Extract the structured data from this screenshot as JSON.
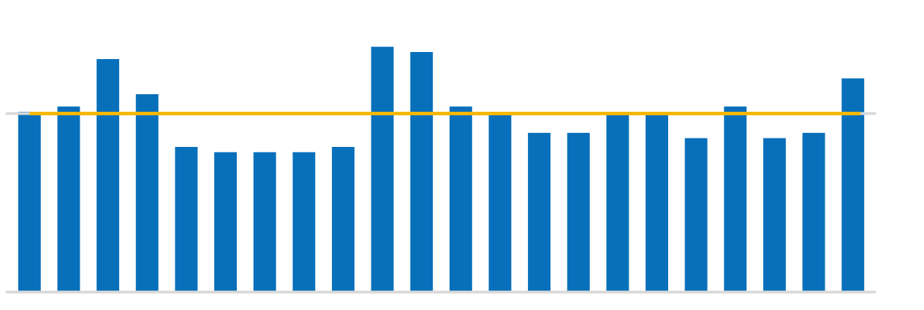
{
  "chart_data": {
    "type": "bar",
    "title": "",
    "xlabel": "",
    "ylabel": "",
    "ylim": [
      0,
      7
    ],
    "y_ticks": [
      "",
      "",
      "",
      "",
      "",
      "",
      "",
      ""
    ],
    "categories": [
      "",
      "",
      "",
      "",
      "",
      "",
      "",
      "",
      "",
      "",
      "",
      "",
      "",
      "",
      "",
      "",
      "",
      "",
      "",
      "",
      "",
      ""
    ],
    "series": [
      {
        "values": [
          5.1,
          5.25,
          6.6,
          5.6,
          4.1,
          3.95,
          3.95,
          3.95,
          4.1,
          6.95,
          6.8,
          5.25,
          5.1,
          4.5,
          4.5,
          5.05,
          5.05,
          4.35,
          5.25,
          4.35,
          4.5,
          6.05
        ]
      }
    ],
    "reference_line": {
      "value": 5.05
    },
    "data_labels": [
      "",
      "",
      "",
      "",
      "",
      "",
      "",
      "",
      "",
      "",
      "",
      "",
      "",
      "",
      "",
      "",
      "",
      "",
      "",
      "",
      "",
      ""
    ],
    "grid": false,
    "legend": "none",
    "colors": {
      "bar": "#0870bb",
      "reference_line": "#f5b700",
      "title": "#0870bb",
      "axis": "#d9d9d9",
      "text": "#8a8a8a"
    }
  }
}
